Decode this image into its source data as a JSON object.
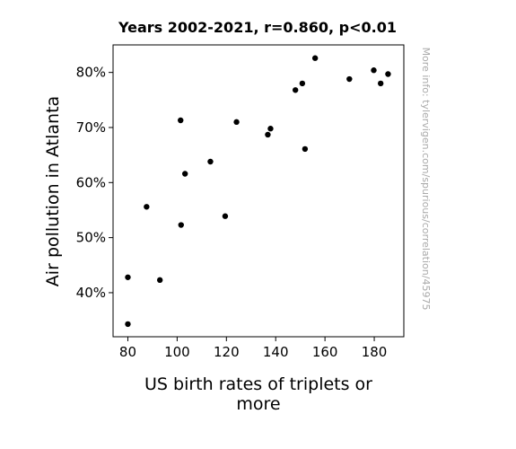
{
  "chart_data": {
    "type": "scatter",
    "title": "Years 2002-2021, r=0.860, p<0.01",
    "xlabel_lines": [
      "US birth rates of triplets or",
      "more"
    ],
    "ylabel": "Air pollution in Atlanta",
    "watermark": "More info: tylervigen.com/spurious/correlation/45975",
    "xlim": [
      74,
      192
    ],
    "ylim": [
      32,
      85
    ],
    "x_ticks": [
      80,
      100,
      120,
      140,
      160,
      180
    ],
    "y_ticks": [
      40,
      50,
      60,
      70,
      80
    ],
    "y_tick_suffix": "%",
    "marker_color": "#000000",
    "points": [
      {
        "x": 80.0,
        "y": 34.3
      },
      {
        "x": 80.0,
        "y": 42.8
      },
      {
        "x": 87.6,
        "y": 55.6
      },
      {
        "x": 93.0,
        "y": 42.3
      },
      {
        "x": 101.4,
        "y": 71.3
      },
      {
        "x": 101.6,
        "y": 52.3
      },
      {
        "x": 103.2,
        "y": 61.6
      },
      {
        "x": 113.5,
        "y": 63.8
      },
      {
        "x": 119.5,
        "y": 53.9
      },
      {
        "x": 124.1,
        "y": 71.0
      },
      {
        "x": 136.8,
        "y": 68.7
      },
      {
        "x": 137.9,
        "y": 69.8
      },
      {
        "x": 148.0,
        "y": 76.8
      },
      {
        "x": 150.8,
        "y": 78.0
      },
      {
        "x": 151.9,
        "y": 66.1
      },
      {
        "x": 156.0,
        "y": 82.6
      },
      {
        "x": 169.9,
        "y": 78.8
      },
      {
        "x": 179.8,
        "y": 80.4
      },
      {
        "x": 182.6,
        "y": 78.0
      },
      {
        "x": 185.6,
        "y": 79.7
      }
    ]
  }
}
